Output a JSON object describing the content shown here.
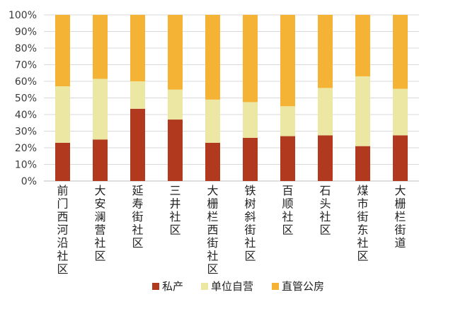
{
  "chart_data": {
    "type": "bar",
    "stacked": true,
    "categories": [
      "前门西河沿社区",
      "大安澜营社区",
      "延寿街社区",
      "三井社区",
      "大栅栏西街社区",
      "铁树斜街社区",
      "百顺社区",
      "石头社区",
      "煤市街东社区",
      "大栅栏街道"
    ],
    "series": [
      {
        "name": "私产",
        "color": "#b13a1e",
        "values": [
          23,
          25,
          43.5,
          37,
          23,
          26,
          27,
          27.5,
          21,
          27.5
        ]
      },
      {
        "name": "单位自营",
        "color": "#ede7a4",
        "values": [
          34,
          36.5,
          16.5,
          18,
          26,
          21.5,
          18,
          28.5,
          42,
          28
        ]
      },
      {
        "name": "直管公房",
        "color": "#f4b335",
        "values": [
          43,
          38.5,
          40,
          45,
          51,
          52.5,
          55,
          44,
          37,
          44.5
        ]
      }
    ],
    "y_ticks": [
      "0%",
      "10%",
      "20%",
      "30%",
      "40%",
      "50%",
      "60%",
      "70%",
      "80%",
      "90%",
      "100%"
    ],
    "ylim": [
      0,
      100
    ],
    "grid": true,
    "legend": "bottom"
  }
}
